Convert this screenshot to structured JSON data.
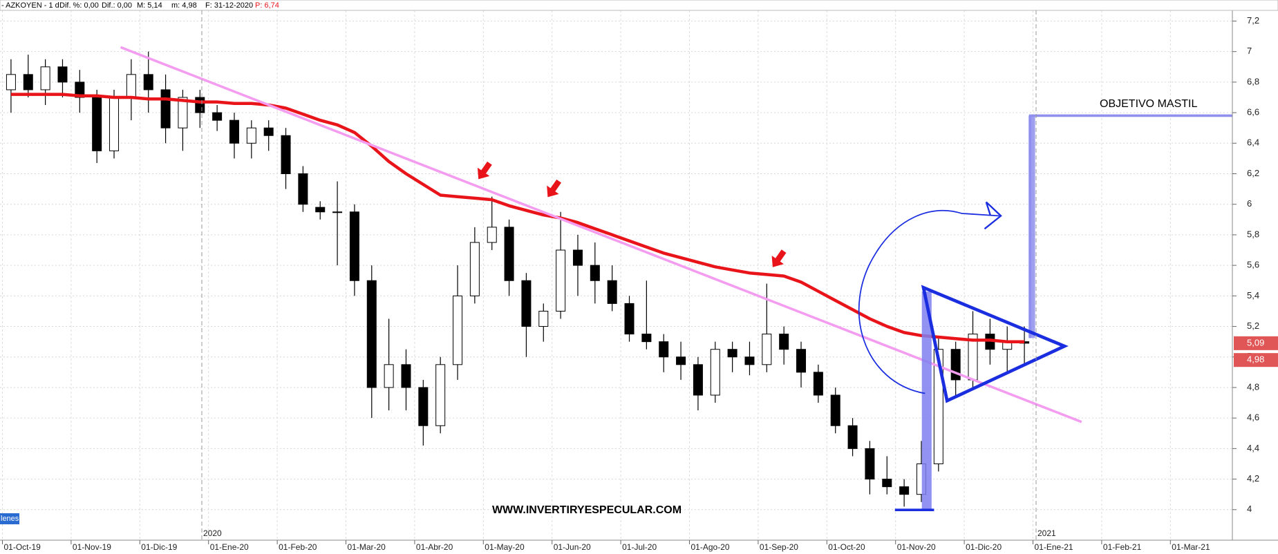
{
  "chart_data": {
    "type": "candlestick",
    "title": "- AZKOYEN - 1 d",
    "header_items": [
      "Dif. %: 0,00",
      "Dif.: 0,00",
      "M: 5,14",
      "m: 4,98",
      "F: 31-12-2020"
    ],
    "header_last": "P: 6,74",
    "categories": [
      "01-Oct-19",
      null,
      null,
      null,
      "01-Nov-19",
      null,
      null,
      null,
      "01-Dic-19",
      null,
      null,
      null,
      "01-Ene-20",
      null,
      null,
      null,
      "01-Feb-20",
      null,
      null,
      null,
      "01-Mar-20",
      null,
      null,
      null,
      "01-Abr-20",
      null,
      null,
      null,
      "01-May-20",
      null,
      null,
      null,
      "01-Jun-20",
      null,
      null,
      null,
      "01-Jul-20",
      null,
      null,
      null,
      "01-Ago-20",
      null,
      null,
      null,
      "01-Sep-20",
      null,
      null,
      null,
      "01-Oct-20",
      null,
      null,
      null,
      "01-Nov-20",
      null,
      null,
      null,
      "01-Dic-20",
      null,
      null,
      null,
      "01-Ene-21",
      null,
      null,
      null,
      "01-Feb-21",
      null,
      null,
      null,
      "01-Mar-21",
      null,
      null
    ],
    "open": [
      6.75,
      6.85,
      6.75,
      6.9,
      6.8,
      6.7,
      6.35,
      6.7,
      6.85,
      6.75,
      6.5,
      6.7,
      6.6,
      6.55,
      6.4,
      6.5,
      6.45,
      6.2,
      5.98,
      5.95,
      5.95,
      5.5,
      4.8,
      4.95,
      4.8,
      4.55,
      4.95,
      5.4,
      5.75,
      5.85,
      5.5,
      5.2,
      5.3,
      5.7,
      5.6,
      5.5,
      5.35,
      5.15,
      5.1,
      5.0,
      4.95,
      4.75,
      5.05,
      5.0,
      4.95,
      5.15,
      5.05,
      4.9,
      4.75,
      4.55,
      4.4,
      4.2,
      4.15,
      4.1,
      4.3,
      5.05,
      4.85,
      5.15,
      5.05,
      5.1,
      null,
      null,
      null,
      null,
      null,
      null,
      null,
      null,
      null,
      null,
      null
    ],
    "high": [
      6.95,
      6.98,
      6.95,
      6.95,
      6.88,
      6.75,
      6.75,
      6.95,
      7.0,
      6.85,
      6.75,
      6.75,
      6.65,
      6.6,
      6.55,
      6.55,
      6.5,
      6.25,
      6.02,
      6.15,
      6.0,
      5.6,
      5.25,
      5.05,
      4.85,
      5.0,
      5.6,
      5.85,
      6.05,
      5.9,
      5.55,
      5.35,
      5.95,
      5.8,
      5.75,
      5.6,
      5.4,
      5.5,
      5.15,
      5.1,
      5.0,
      5.1,
      5.1,
      5.1,
      5.48,
      5.2,
      5.1,
      4.95,
      4.8,
      4.6,
      4.45,
      4.35,
      4.2,
      4.45,
      5.12,
      5.1,
      5.3,
      5.25,
      5.2,
      5.2,
      null,
      null,
      null,
      null,
      null,
      null,
      null,
      null,
      null,
      null,
      null
    ],
    "low": [
      6.6,
      6.7,
      6.65,
      6.7,
      6.6,
      6.27,
      6.3,
      6.55,
      6.6,
      6.4,
      6.35,
      6.5,
      6.48,
      6.3,
      6.3,
      6.35,
      6.1,
      5.95,
      5.9,
      5.6,
      5.4,
      4.6,
      4.65,
      4.65,
      4.42,
      4.5,
      4.85,
      5.35,
      5.7,
      5.4,
      5.0,
      5.1,
      5.25,
      5.4,
      5.35,
      5.3,
      5.1,
      5.05,
      4.9,
      4.85,
      4.65,
      4.7,
      4.9,
      4.88,
      4.9,
      4.95,
      4.8,
      4.7,
      4.5,
      4.35,
      4.1,
      4.1,
      4.02,
      4.05,
      4.25,
      4.75,
      4.8,
      4.95,
      4.9,
      4.95,
      null,
      null,
      null,
      null,
      null,
      null,
      null,
      null,
      null,
      null,
      null
    ],
    "close": [
      6.85,
      6.75,
      6.9,
      6.8,
      6.7,
      6.35,
      6.7,
      6.85,
      6.75,
      6.5,
      6.7,
      6.6,
      6.55,
      6.4,
      6.5,
      6.45,
      6.2,
      6.0,
      5.95,
      5.95,
      5.5,
      4.8,
      4.95,
      4.8,
      4.55,
      4.95,
      5.4,
      5.75,
      5.85,
      5.5,
      5.2,
      5.3,
      5.7,
      5.6,
      5.5,
      5.35,
      5.15,
      5.1,
      5.0,
      4.95,
      4.75,
      5.05,
      5.0,
      4.95,
      5.15,
      5.05,
      4.9,
      4.75,
      4.55,
      4.4,
      4.2,
      4.15,
      4.1,
      4.3,
      5.05,
      4.85,
      5.15,
      5.05,
      5.1,
      5.09,
      null,
      null,
      null,
      null,
      null,
      null,
      null,
      null,
      null,
      null,
      null
    ],
    "moving_average": {
      "color": "#e8141a",
      "values": [
        6.72,
        6.72,
        6.72,
        6.72,
        6.71,
        6.71,
        6.7,
        6.7,
        6.69,
        6.69,
        6.68,
        6.67,
        6.67,
        6.66,
        6.66,
        6.65,
        6.63,
        6.59,
        6.55,
        6.52,
        6.47,
        6.38,
        6.28,
        6.2,
        6.13,
        6.06,
        6.05,
        6.04,
        6.03,
        5.99,
        5.96,
        5.93,
        5.91,
        5.88,
        5.84,
        5.8,
        5.76,
        5.72,
        5.68,
        5.65,
        5.62,
        5.59,
        5.57,
        5.55,
        5.54,
        5.53,
        5.49,
        5.43,
        5.37,
        5.31,
        5.25,
        5.2,
        5.16,
        5.14,
        5.13,
        5.12,
        5.11,
        5.11,
        5.1,
        5.1,
        null,
        null,
        null,
        null,
        null,
        null,
        null,
        null,
        null,
        null,
        null
      ]
    },
    "up_color": "#ffffff",
    "down_color": "#000000",
    "ylim": [
      3.8,
      7.27
    ],
    "yticks": [
      {
        "value": 4,
        "label": "4"
      },
      {
        "value": 4.2,
        "label": "4,2"
      },
      {
        "value": 4.4,
        "label": "4,4"
      },
      {
        "value": 4.6,
        "label": "4,6"
      },
      {
        "value": 4.8,
        "label": "4,8"
      },
      {
        "value": 5,
        "label": "5"
      },
      {
        "value": 5.2,
        "label": "5,2"
      },
      {
        "value": 5.4,
        "label": "5,4"
      },
      {
        "value": 5.6,
        "label": "5,6"
      },
      {
        "value": 5.8,
        "label": "5,8"
      },
      {
        "value": 6,
        "label": "6"
      },
      {
        "value": 6.2,
        "label": "6,2"
      },
      {
        "value": 6.4,
        "label": "6,4"
      },
      {
        "value": 6.6,
        "label": "6,6"
      },
      {
        "value": 6.8,
        "label": "6,8"
      },
      {
        "value": 7,
        "label": "7"
      },
      {
        "value": 7.2,
        "label": "7,2"
      }
    ],
    "grid": true,
    "price_tags": [
      {
        "value": 5.09,
        "label": "5,09"
      },
      {
        "value": 4.98,
        "label": "4,98"
      }
    ],
    "year_labels": [
      "2020",
      "2021"
    ],
    "annotations": [
      "OBJETIVO MASTIL",
      "WWW.INVERTIRYESPECULAR.COM"
    ],
    "volume_label": "lenes"
  }
}
